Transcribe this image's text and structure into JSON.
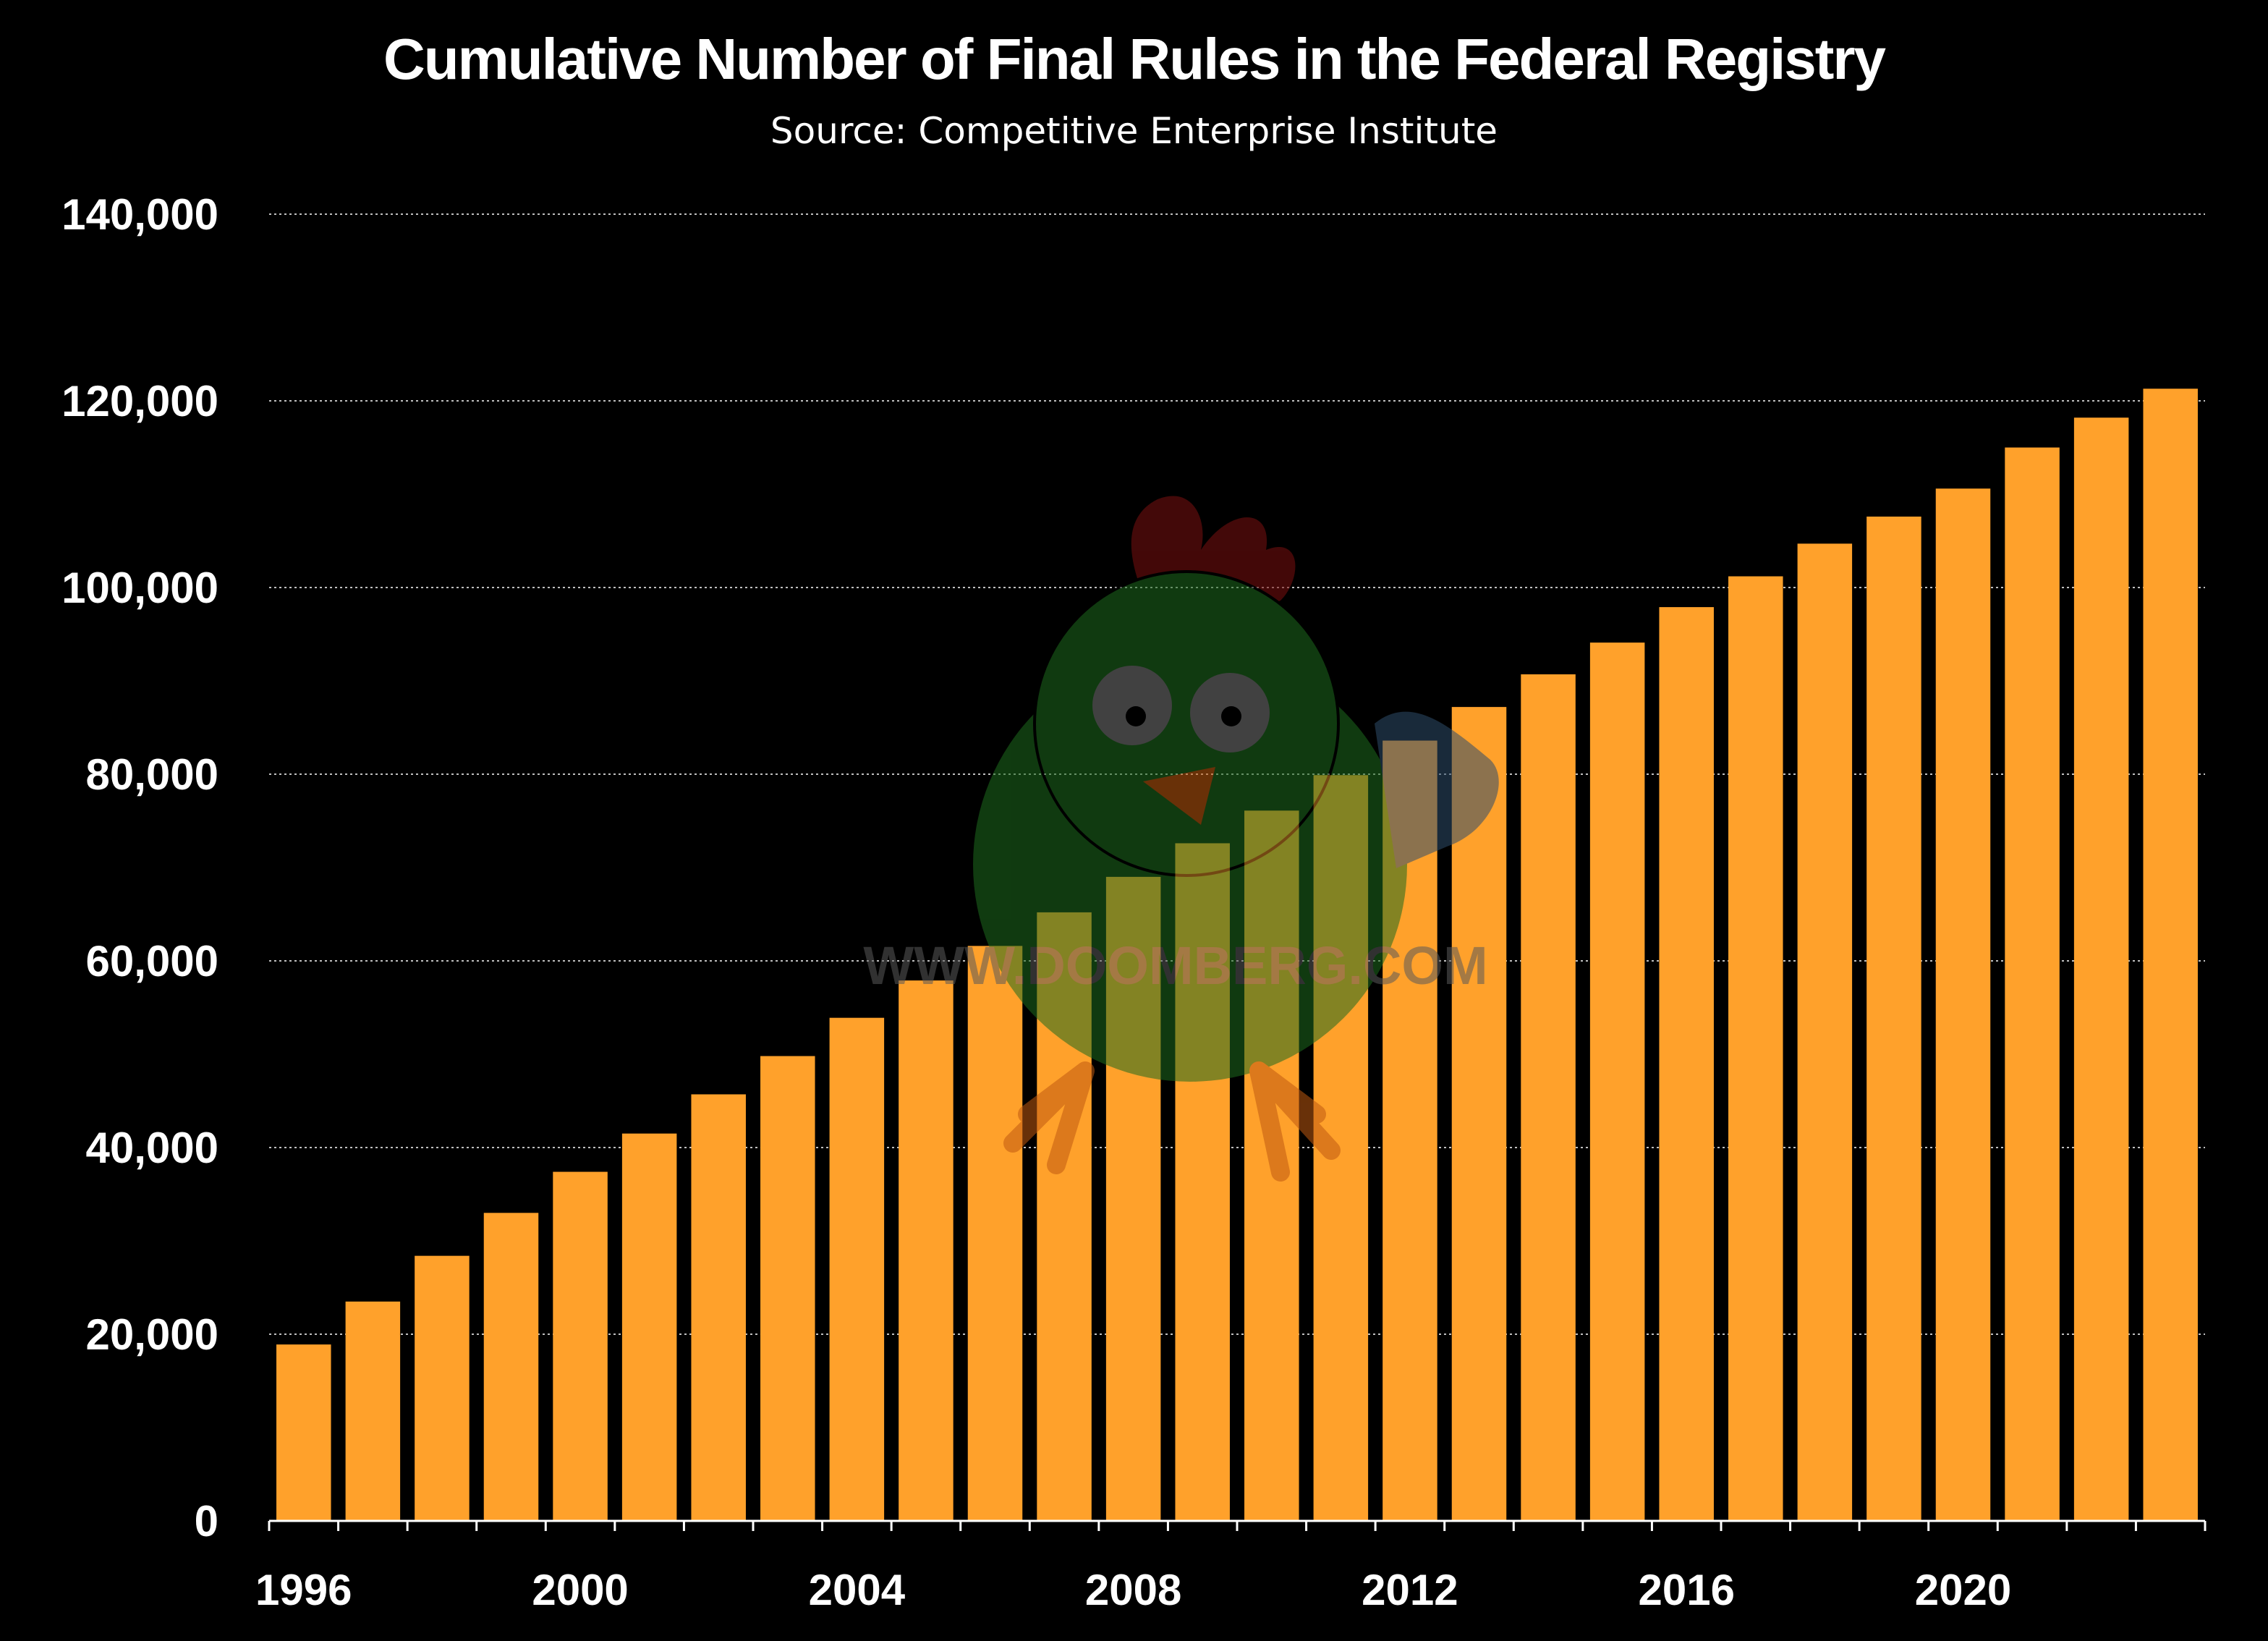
{
  "colors": {
    "background": "#000000",
    "bar": "#FFA12B",
    "text": "#ffffff",
    "gridline": "#bfbfbf"
  },
  "chart_data": {
    "type": "bar",
    "title": "Cumulative Number of Final Rules in the Federal Registry",
    "subtitle": "Source: Competitive Enterprise Institute",
    "xlabel": "",
    "ylabel": "",
    "categories": [
      "1996",
      "1997",
      "1998",
      "1999",
      "2000",
      "2001",
      "2002",
      "2003",
      "2004",
      "2005",
      "2006",
      "2007",
      "2008",
      "2009",
      "2010",
      "2011",
      "2012",
      "2013",
      "2014",
      "2015",
      "2016",
      "2017",
      "2018",
      "2019",
      "2020",
      "2021",
      "2022",
      "2023"
    ],
    "values": [
      18900,
      23500,
      28400,
      33000,
      37400,
      41500,
      45700,
      49800,
      53900,
      57900,
      61600,
      65200,
      69000,
      72600,
      76100,
      79900,
      83600,
      87200,
      90700,
      94100,
      97900,
      101200,
      104700,
      107600,
      110600,
      115000,
      118200,
      121300
    ],
    "ylim": [
      0,
      140000
    ],
    "yticks": [
      0,
      20000,
      40000,
      60000,
      80000,
      100000,
      120000,
      140000
    ],
    "ytick_labels": [
      "0",
      "20,000",
      "40,000",
      "60,000",
      "80,000",
      "100,000",
      "120,000",
      "140,000"
    ],
    "xtick_labels": [
      {
        "category": "1996",
        "label": "1996"
      },
      {
        "category": "2000",
        "label": "2000"
      },
      {
        "category": "2004",
        "label": "2004"
      },
      {
        "category": "2008",
        "label": "2008"
      },
      {
        "category": "2012",
        "label": "2012"
      },
      {
        "category": "2016",
        "label": "2016"
      },
      {
        "category": "2020",
        "label": "2020"
      }
    ],
    "grid": "horizontal dotted",
    "legend": "none"
  },
  "watermark": {
    "text": "WWW.DOOMBERG.COM",
    "icon": "chicken-mascot-icon"
  }
}
